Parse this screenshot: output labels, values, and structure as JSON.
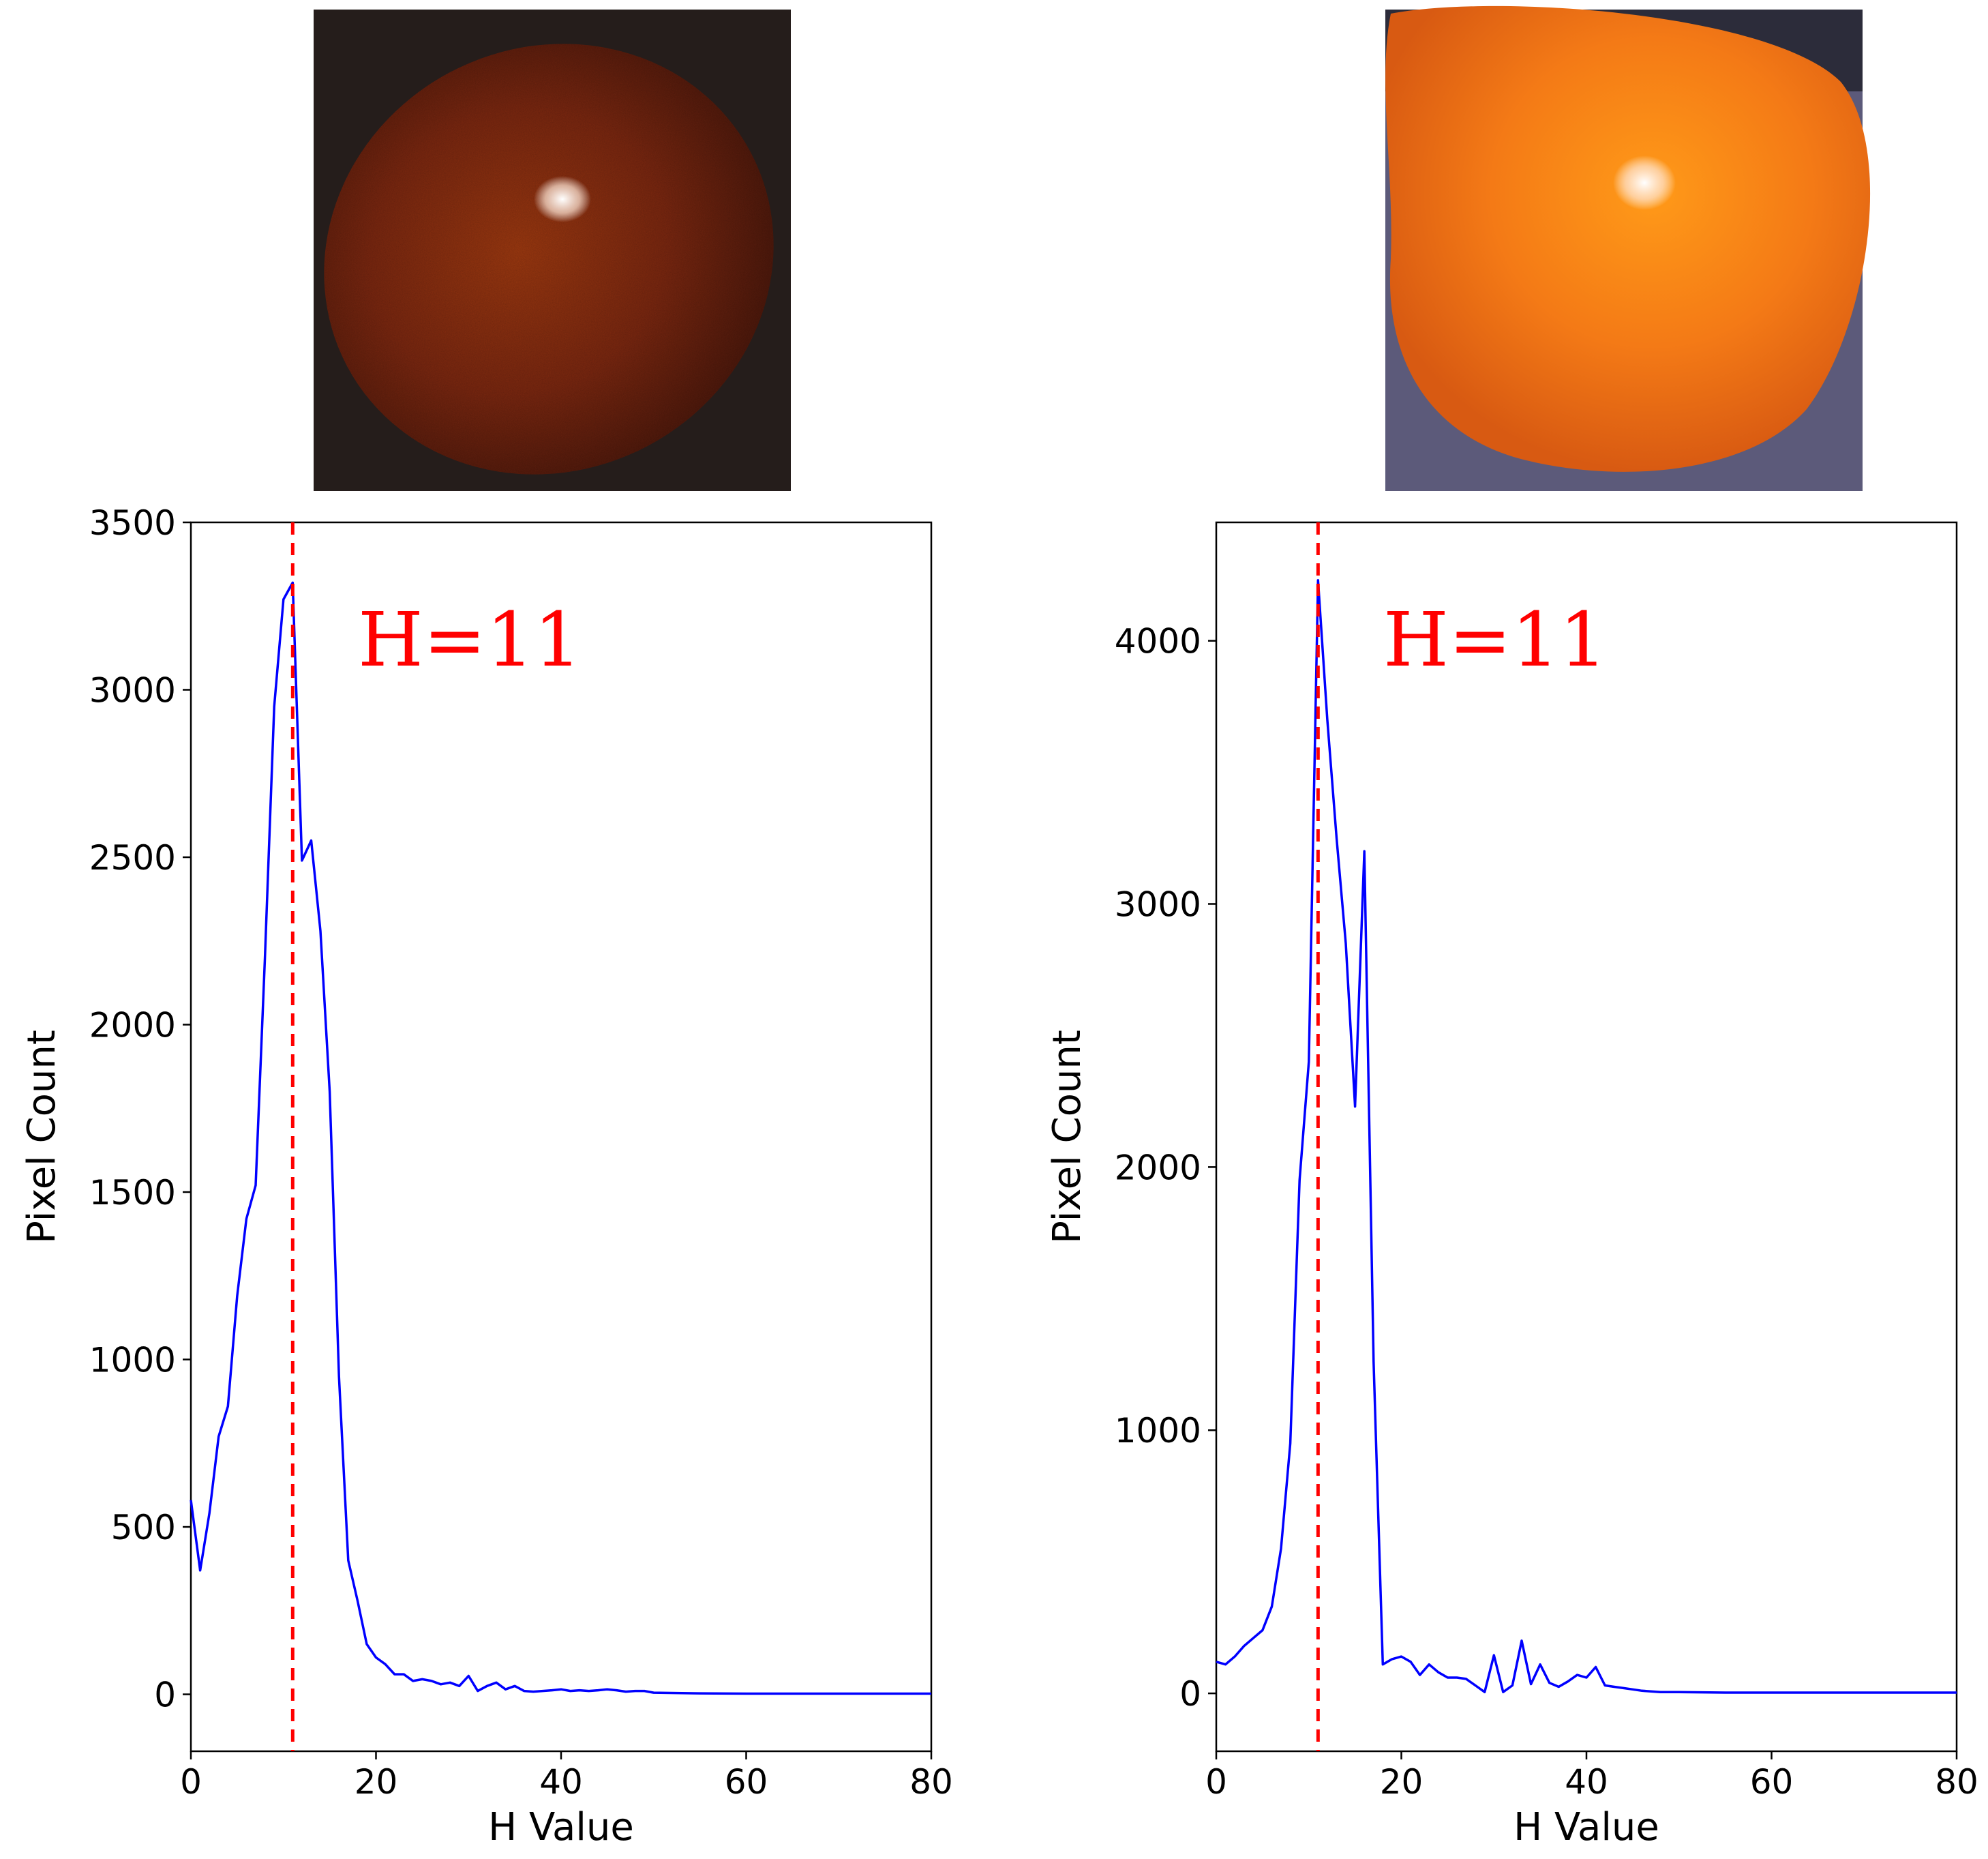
{
  "chart_data": [
    {
      "type": "line",
      "panel": "left",
      "image_desc": "dark red tomato",
      "xlabel": "H Value",
      "ylabel": "Pixel Count",
      "xlim": [
        0,
        80
      ],
      "ylim": [
        -170,
        3500
      ],
      "xticks": [
        0,
        20,
        40,
        60,
        80
      ],
      "yticks": [
        0,
        500,
        1000,
        1500,
        2000,
        2500,
        3000,
        3500
      ],
      "annotation": "H=11",
      "vline_x": 11,
      "line_color": "#0000ff",
      "vline_color": "#ff0000",
      "series": [
        {
          "name": "histogram",
          "x": [
            0,
            1,
            2,
            3,
            4,
            5,
            6,
            7,
            8,
            9,
            10,
            11,
            12,
            13,
            14,
            15,
            16,
            17,
            18,
            19,
            20,
            21,
            22,
            23,
            24,
            25,
            26,
            27,
            28,
            29,
            30,
            31,
            32,
            33,
            34,
            35,
            36,
            37,
            38,
            39,
            40,
            41,
            42,
            43,
            44,
            45,
            46,
            47,
            48,
            49,
            50,
            55,
            60,
            70,
            80
          ],
          "values": [
            580,
            370,
            540,
            770,
            860,
            1190,
            1420,
            1520,
            2200,
            2950,
            3270,
            3320,
            2490,
            2550,
            2280,
            1800,
            950,
            400,
            280,
            150,
            110,
            90,
            60,
            60,
            40,
            45,
            40,
            30,
            35,
            25,
            55,
            10,
            25,
            35,
            15,
            25,
            10,
            8,
            10,
            12,
            15,
            10,
            12,
            10,
            12,
            15,
            12,
            8,
            10,
            10,
            5,
            3,
            2,
            2,
            2
          ]
        }
      ]
    },
    {
      "type": "line",
      "panel": "right",
      "image_desc": "bright orange tomato",
      "xlabel": "H Value",
      "ylabel": "Pixel Count",
      "xlim": [
        0,
        80
      ],
      "ylim": [
        -220,
        4450
      ],
      "xticks": [
        0,
        20,
        40,
        60,
        80
      ],
      "yticks": [
        0,
        1000,
        2000,
        3000,
        4000
      ],
      "annotation": "H=11",
      "vline_x": 11,
      "line_color": "#0000ff",
      "vline_color": "#ff0000",
      "series": [
        {
          "name": "histogram",
          "x": [
            0,
            1,
            2,
            3,
            4,
            5,
            6,
            7,
            8,
            9,
            10,
            11,
            12,
            13,
            14,
            15,
            16,
            17,
            18,
            19,
            20,
            21,
            22,
            23,
            24,
            25,
            26,
            27,
            28,
            29,
            30,
            31,
            32,
            33,
            34,
            35,
            36,
            37,
            38,
            39,
            40,
            41,
            42,
            43,
            44,
            45,
            46,
            48,
            50,
            55,
            60,
            70,
            80
          ],
          "values": [
            120,
            110,
            140,
            180,
            210,
            240,
            330,
            550,
            950,
            1950,
            2400,
            4230,
            3700,
            3250,
            2850,
            2230,
            3200,
            1260,
            110,
            130,
            140,
            120,
            70,
            110,
            80,
            60,
            60,
            55,
            30,
            5,
            145,
            5,
            30,
            200,
            35,
            110,
            40,
            25,
            45,
            70,
            60,
            100,
            30,
            25,
            20,
            15,
            10,
            5,
            5,
            3,
            3,
            3,
            3
          ]
        }
      ]
    }
  ]
}
